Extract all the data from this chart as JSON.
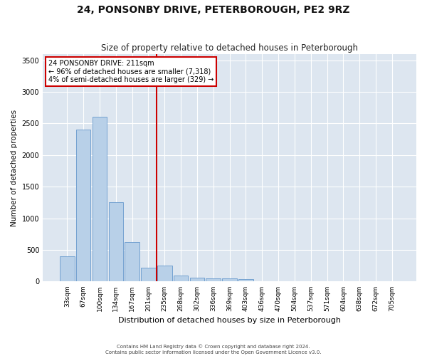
{
  "title": "24, PONSONBY DRIVE, PETERBOROUGH, PE2 9RZ",
  "subtitle": "Size of property relative to detached houses in Peterborough",
  "xlabel": "Distribution of detached houses by size in Peterborough",
  "ylabel": "Number of detached properties",
  "categories": [
    "33sqm",
    "67sqm",
    "100sqm",
    "134sqm",
    "167sqm",
    "201sqm",
    "235sqm",
    "268sqm",
    "302sqm",
    "336sqm",
    "369sqm",
    "403sqm",
    "436sqm",
    "470sqm",
    "504sqm",
    "537sqm",
    "571sqm",
    "604sqm",
    "638sqm",
    "672sqm",
    "705sqm"
  ],
  "values": [
    400,
    2400,
    2600,
    1250,
    625,
    220,
    250,
    100,
    62,
    55,
    50,
    40,
    0,
    0,
    0,
    0,
    0,
    0,
    0,
    0,
    0
  ],
  "bar_color": "#b8d0e8",
  "bar_edge_color": "#6699cc",
  "vline_x": 5.5,
  "vline_color": "#cc0000",
  "annotation_text": "24 PONSONBY DRIVE: 211sqm\n← 96% of detached houses are smaller (7,318)\n4% of semi-detached houses are larger (329) →",
  "annotation_box_color": "#ffffff",
  "annotation_box_edge": "#cc0000",
  "ylim": [
    0,
    3600
  ],
  "yticks": [
    0,
    500,
    1000,
    1500,
    2000,
    2500,
    3000,
    3500
  ],
  "background_color": "#dde6f0",
  "fig_background_color": "#ffffff",
  "grid_color": "#ffffff",
  "footer_line1": "Contains HM Land Registry data © Crown copyright and database right 2024.",
  "footer_line2": "Contains public sector information licensed under the Open Government Licence v3.0.",
  "title_fontsize": 10,
  "subtitle_fontsize": 8.5,
  "xlabel_fontsize": 8,
  "ylabel_fontsize": 7.5,
  "annotation_fontsize": 7,
  "tick_fontsize": 6.5,
  "ytick_fontsize": 7
}
